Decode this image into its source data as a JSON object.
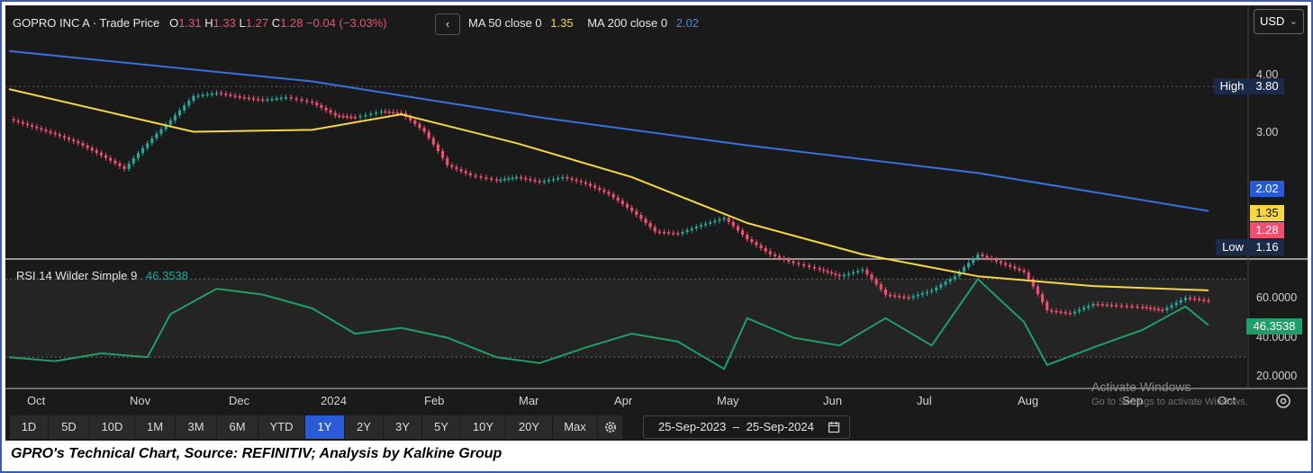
{
  "header": {
    "instrument": "GOPRO INC A · Trade Price",
    "ohlc": [
      {
        "k": "O",
        "v": "1.31"
      },
      {
        "k": "H",
        "v": "1.33"
      },
      {
        "k": "L",
        "v": "1.27"
      },
      {
        "k": "C",
        "v": "1.28"
      }
    ],
    "change": "−0.04 (−3.03%)",
    "collapse_btn": "‹",
    "ma50_label": "MA 50 close 0",
    "ma50_value": "1.35",
    "ma200_label": "MA 200 close 0",
    "ma200_value": "2.02",
    "currency": "USD",
    "currency_chevron": "⌄"
  },
  "colors": {
    "background": "#1a1a1a",
    "up": "#26a69a",
    "down": "#f0506e",
    "ma50": "#f5d742",
    "ma200": "#3a6fe0",
    "rsi": "#1f9e6a",
    "accent_active": "#2a5bd7"
  },
  "price_axis": {
    "ticks": [
      "4.00",
      "3.00"
    ],
    "high": {
      "label": "High",
      "value": "3.80"
    },
    "low": {
      "label": "Low",
      "value": "1.16"
    },
    "ma200_tag": "2.02",
    "ma50_tag": "1.35",
    "last_tag": "1.28"
  },
  "rsi_panel": {
    "label": "RSI 14 Wilder Simple 9",
    "value": "46.3538",
    "ticks": [
      "60.0000",
      "40.0000",
      "20.0000"
    ],
    "value_tag": "46.3538"
  },
  "time_axis": {
    "labels": [
      "Oct",
      "Nov",
      "Dec",
      "2024",
      "Feb",
      "Mar",
      "Apr",
      "May",
      "Jun",
      "Jul",
      "Aug",
      "Sep",
      "Oct"
    ]
  },
  "toolbar": {
    "periods": [
      "1D",
      "5D",
      "10D",
      "1M",
      "3M",
      "6M",
      "YTD",
      "1Y",
      "2Y",
      "3Y",
      "5Y",
      "10Y",
      "20Y",
      "Max"
    ],
    "active": "1Y",
    "settings_icon": "gear-icon",
    "date_start": "25-Sep-2023",
    "date_sep": "–",
    "date_end": "25-Sep-2024",
    "calendar_icon": "calendar-icon",
    "target_icon": "crosshair-icon"
  },
  "watermark": {
    "line1": "Activate Windows",
    "line2": "Go to Settings to activate Windows."
  },
  "caption": "GPRO's Technical Chart, Source: REFINITIV; Analysis by Kalkine Group",
  "chart_data": {
    "type": "line",
    "title": "GOPRO INC A · Trade Price",
    "x_range": [
      "25-Sep-2023",
      "25-Sep-2024"
    ],
    "y_scale": "log",
    "y_ticks": [
      3.0,
      4.0
    ],
    "series": [
      {
        "name": "Trade Price",
        "x": [
          "2023-09-25",
          "2023-10-02",
          "2023-10-09",
          "2023-10-16",
          "2023-10-23",
          "2023-10-30",
          "2023-11-06",
          "2023-11-13",
          "2023-11-20",
          "2023-11-27",
          "2023-12-04",
          "2023-12-11",
          "2023-12-18",
          "2023-12-26",
          "2024-01-02",
          "2024-01-08",
          "2024-01-16",
          "2024-01-22",
          "2024-01-29",
          "2024-02-05",
          "2024-02-12",
          "2024-02-20",
          "2024-02-26",
          "2024-03-04",
          "2024-03-11",
          "2024-03-18",
          "2024-03-25",
          "2024-04-01",
          "2024-04-08",
          "2024-04-15",
          "2024-04-22",
          "2024-04-29",
          "2024-05-06",
          "2024-05-13",
          "2024-05-20",
          "2024-05-28",
          "2024-06-03",
          "2024-06-10",
          "2024-06-17",
          "2024-06-24",
          "2024-07-01",
          "2024-07-08",
          "2024-07-15",
          "2024-07-22",
          "2024-07-29",
          "2024-08-05",
          "2024-08-12",
          "2024-08-19",
          "2024-08-26",
          "2024-09-03",
          "2024-09-09",
          "2024-09-16",
          "2024-09-23"
        ],
        "values": [
          3.22,
          3.1,
          2.98,
          2.85,
          2.68,
          2.5,
          2.85,
          3.2,
          3.62,
          3.68,
          3.6,
          3.55,
          3.6,
          3.5,
          3.28,
          3.25,
          3.35,
          3.32,
          3.02,
          2.55,
          2.42,
          2.36,
          2.4,
          2.34,
          2.4,
          2.32,
          2.2,
          2.02,
          1.82,
          1.8,
          1.88,
          1.95,
          1.75,
          1.62,
          1.55,
          1.5,
          1.45,
          1.5,
          1.32,
          1.3,
          1.35,
          1.45,
          1.62,
          1.55,
          1.48,
          1.22,
          1.2,
          1.26,
          1.25,
          1.24,
          1.22,
          1.3,
          1.28
        ]
      },
      {
        "name": "MA 50 close 0",
        "x": [
          "2023-09-25",
          "2023-11-20",
          "2023-12-26",
          "2024-01-22",
          "2024-02-26",
          "2024-04-01",
          "2024-05-06",
          "2024-06-10",
          "2024-07-15",
          "2024-08-19",
          "2024-09-23"
        ],
        "values": [
          3.75,
          3.02,
          3.05,
          3.3,
          2.85,
          2.4,
          1.9,
          1.62,
          1.45,
          1.38,
          1.35
        ]
      },
      {
        "name": "MA 200 close 0",
        "x": [
          "2023-09-25",
          "2023-12-26",
          "2024-03-04",
          "2024-05-06",
          "2024-07-15",
          "2024-09-23"
        ],
        "values": [
          4.55,
          3.9,
          3.25,
          2.82,
          2.45,
          2.02
        ]
      }
    ],
    "rsi": {
      "name": "RSI 14 Wilder Simple 9",
      "y_ticks": [
        20,
        40,
        60
      ],
      "x": [
        "2023-09-25",
        "2023-10-09",
        "2023-10-23",
        "2023-11-06",
        "2023-11-13",
        "2023-11-27",
        "2023-12-11",
        "2023-12-26",
        "2024-01-08",
        "2024-01-22",
        "2024-02-05",
        "2024-02-20",
        "2024-03-04",
        "2024-03-18",
        "2024-04-01",
        "2024-04-15",
        "2024-04-29",
        "2024-05-06",
        "2024-05-20",
        "2024-06-03",
        "2024-06-17",
        "2024-07-01",
        "2024-07-15",
        "2024-07-29",
        "2024-08-05",
        "2024-08-19",
        "2024-09-03",
        "2024-09-16",
        "2024-09-23"
      ],
      "values": [
        30,
        28,
        32,
        30,
        52,
        65,
        62,
        55,
        42,
        45,
        40,
        30,
        27,
        35,
        42,
        38,
        24,
        50,
        40,
        36,
        50,
        36,
        70,
        48,
        26,
        35,
        44,
        56,
        46.35
      ]
    }
  }
}
